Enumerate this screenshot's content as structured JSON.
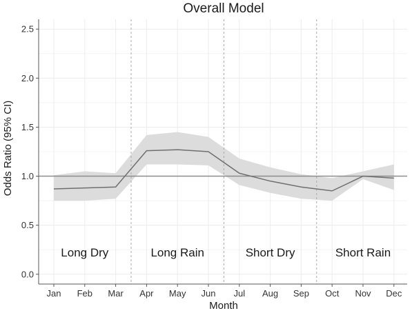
{
  "chart_data": {
    "type": "line",
    "title": "Overall Model",
    "xlabel": "Month",
    "ylabel": "Odds Ratio (95% CI)",
    "categories": [
      "Jan",
      "Feb",
      "Mar",
      "Apr",
      "May",
      "Jun",
      "Jul",
      "Aug",
      "Sep",
      "Oct",
      "Nov",
      "Dec"
    ],
    "ylim": [
      -0.1,
      2.6
    ],
    "yticks": [
      0.0,
      0.5,
      1.0,
      1.5,
      2.0,
      2.5
    ],
    "ytick_labels": [
      "0.0",
      "0.5",
      "1.0",
      "1.5",
      "2.0",
      "2.5"
    ],
    "grid": true,
    "reference_line": 1.0,
    "series": [
      {
        "values": [
          0.87,
          0.88,
          0.89,
          1.26,
          1.27,
          1.25,
          1.03,
          0.95,
          0.89,
          0.85,
          1.0,
          0.98
        ],
        "lower": [
          0.75,
          0.75,
          0.77,
          1.12,
          1.12,
          1.11,
          0.91,
          0.83,
          0.77,
          0.75,
          0.97,
          0.86
        ],
        "upper": [
          1.01,
          1.05,
          1.03,
          1.42,
          1.45,
          1.4,
          1.18,
          1.09,
          1.02,
          0.98,
          1.05,
          1.12
        ]
      }
    ],
    "season_dividers_after": [
      "Mar",
      "Jun",
      "Sep"
    ],
    "seasons": [
      {
        "label": "Long Dry",
        "months": [
          "Jan",
          "Feb",
          "Mar"
        ]
      },
      {
        "label": "Long Rain",
        "months": [
          "Apr",
          "May",
          "Jun"
        ]
      },
      {
        "label": "Short Dry",
        "months": [
          "Jul",
          "Aug",
          "Sep"
        ]
      },
      {
        "label": "Short Rain",
        "months": [
          "Oct",
          "Nov",
          "Dec"
        ]
      }
    ],
    "colors": {
      "line": "#6f6f6f",
      "band": "#dcdcdc",
      "reference": "#8c8c8c",
      "grid": "#ececec",
      "divider": "#a8a8a8",
      "axis": "#555555"
    }
  }
}
